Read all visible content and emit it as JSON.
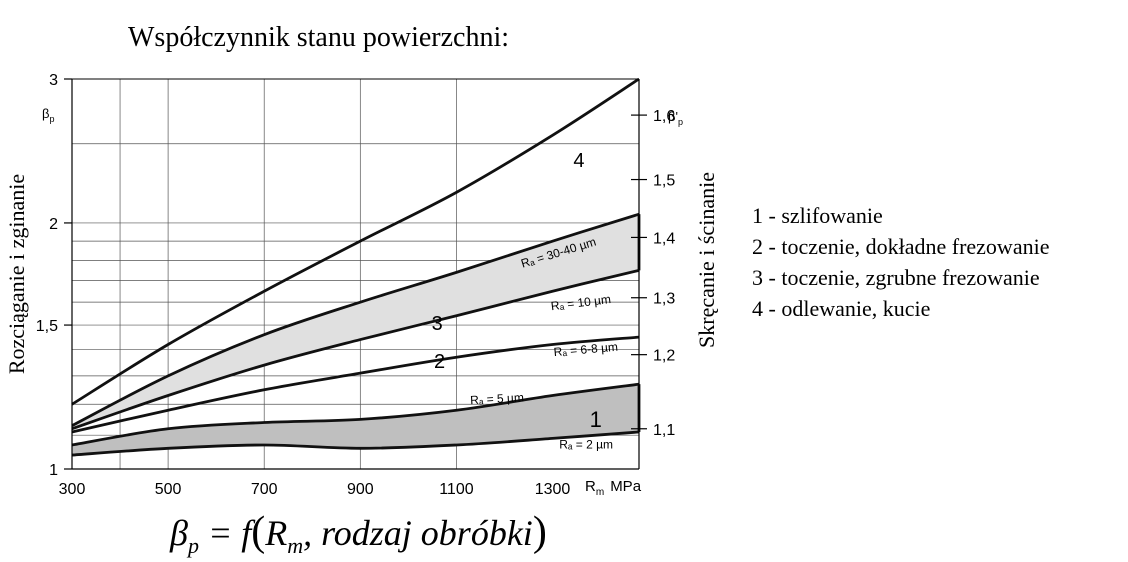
{
  "title": "Współczynnik stanu powierzchni:",
  "chart_data": {
    "type": "line",
    "xlabel": "R",
    "xlabel_sub": "m",
    "xlabel_unit": "MPa",
    "ylabel_left": "Rozciąganie i zginanie",
    "ylabel_left_symbol": "β",
    "ylabel_left_symbol_sub": "p",
    "ylabel_right": "Skręcanie i ścinanie",
    "ylabel_right_symbol": "β'",
    "ylabel_right_symbol_sub": "p",
    "xlim": [
      300,
      1480
    ],
    "ylim": [
      1,
      3
    ],
    "x_ticks": [
      "300",
      "500",
      "700",
      "900",
      "1100",
      "1300"
    ],
    "y_left_ticks": [
      "1",
      "1,5",
      "2",
      "3"
    ],
    "y_left_tick_values": [
      1,
      1.5,
      2,
      3
    ],
    "y_right_ticks": [
      "1,1",
      "1,2",
      "1,3",
      "1,4",
      "1,5",
      "1,6"
    ],
    "y_right_tick_values": [
      1.12,
      1.38,
      1.62,
      1.92,
      2.26,
      2.71
    ],
    "gridlines_y": [
      1.1,
      1.2,
      1.3,
      1.4,
      1.5,
      1.6,
      1.7,
      1.8,
      1.9,
      2.0,
      2.5,
      3.0
    ],
    "gridlines_x": [
      400,
      500,
      700,
      900,
      1100
    ],
    "series": [
      {
        "name": "Rₐ = 2 µm",
        "x": [
          300,
          500,
          700,
          900,
          1100,
          1300,
          1480
        ],
        "y": [
          1.04,
          1.06,
          1.07,
          1.06,
          1.07,
          1.09,
          1.11
        ]
      },
      {
        "name": "Rₐ = 5 µm",
        "x": [
          300,
          500,
          700,
          900,
          1100,
          1300,
          1480
        ],
        "y": [
          1.07,
          1.12,
          1.14,
          1.15,
          1.18,
          1.23,
          1.27
        ]
      },
      {
        "name": "Rₐ = 6-8 µm",
        "x": [
          300,
          500,
          700,
          900,
          1100,
          1300,
          1480
        ],
        "y": [
          1.11,
          1.18,
          1.25,
          1.31,
          1.37,
          1.42,
          1.45
        ]
      },
      {
        "name": "Rₐ = 10 µm",
        "x": [
          300,
          500,
          700,
          900,
          1100,
          1300,
          1480
        ],
        "y": [
          1.12,
          1.23,
          1.34,
          1.44,
          1.54,
          1.65,
          1.75
        ]
      },
      {
        "name": "Rₐ = 30-40 µm",
        "x": [
          300,
          500,
          700,
          900,
          1100,
          1300,
          1480
        ],
        "y": [
          1.13,
          1.3,
          1.46,
          1.6,
          1.74,
          1.9,
          2.05
        ]
      },
      {
        "name": "4",
        "x": [
          300,
          500,
          700,
          900,
          1100,
          1300,
          1480
        ],
        "y": [
          1.2,
          1.42,
          1.65,
          1.9,
          2.18,
          2.56,
          3.0
        ]
      }
    ],
    "bands": [
      {
        "label": "1",
        "lower": "Rₐ = 2 µm",
        "upper": "Rₐ = 5 µm",
        "fill": "#bfbfbf"
      },
      {
        "label": "3",
        "lower": "Rₐ = 10 µm",
        "upper": "Rₐ = 30-40 µm",
        "fill": "#e0e0e0"
      }
    ],
    "curve_labels": [
      "1",
      "2",
      "3",
      "4"
    ],
    "band_labels": [
      {
        "text": "Rₐ = 30-40 µm"
      },
      {
        "text": "Rₐ = 10 µm"
      },
      {
        "text": "Rₐ = 6-8 µm"
      },
      {
        "text": "Rₐ = 5 µm"
      },
      {
        "text": "Rₐ = 2 µm"
      }
    ]
  },
  "legend": [
    "1 - szlifowanie",
    "2 - toczenie, dokładne frezowanie",
    "3 - toczenie, zgrubne frezowanie",
    "4 - odlewanie, kucie"
  ],
  "formula": {
    "beta": "β",
    "beta_sub": "p",
    "eq": " = f",
    "open": "(",
    "R": "R",
    "R_sub": "m",
    "rest": ", rodzaj obróbki",
    "close": ")"
  }
}
